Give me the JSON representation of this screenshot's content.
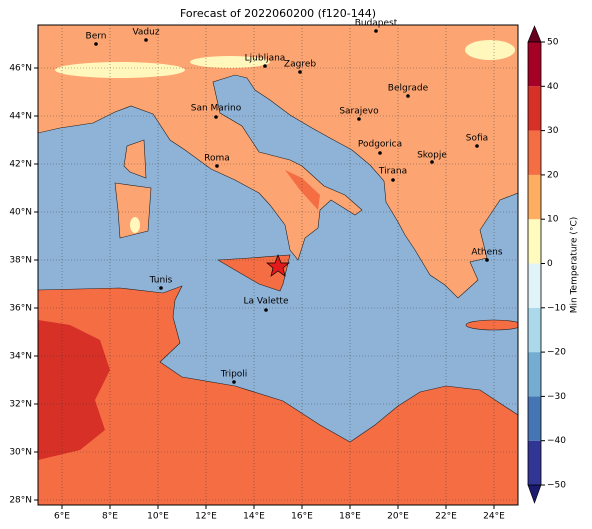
{
  "map": {
    "title": "Forecast of 2022060200 (f120-144)",
    "lon_ticks": [
      "6°E",
      "8°E",
      "10°E",
      "12°E",
      "14°E",
      "16°E",
      "18°E",
      "20°E",
      "22°E",
      "24°E"
    ],
    "lat_ticks": [
      "46°N",
      "44°N",
      "42°N",
      "40°N",
      "38°N",
      "36°N",
      "34°N",
      "32°N",
      "30°N",
      "28°N"
    ],
    "cities": [
      "Bern",
      "Vaduz",
      "Budapest",
      "Ljubljana",
      "Zagreb",
      "Belgrade",
      "San Marino",
      "Sarajevo",
      "Sofia",
      "Podgorica",
      "Skopje",
      "Roma",
      "Tirana",
      "Athens",
      "Tunis",
      "La Valette",
      "Tripoli"
    ],
    "colorbar": {
      "label": "Min Temperature (°C)",
      "ticks": [
        {
          "value": -50,
          "label": "−50"
        },
        {
          "value": -40,
          "label": "−40"
        },
        {
          "value": -30,
          "label": "−30"
        },
        {
          "value": -20,
          "label": "−20"
        },
        {
          "value": -10,
          "label": "−10"
        },
        0,
        10,
        20,
        30,
        40,
        50
      ]
    }
  }
}
